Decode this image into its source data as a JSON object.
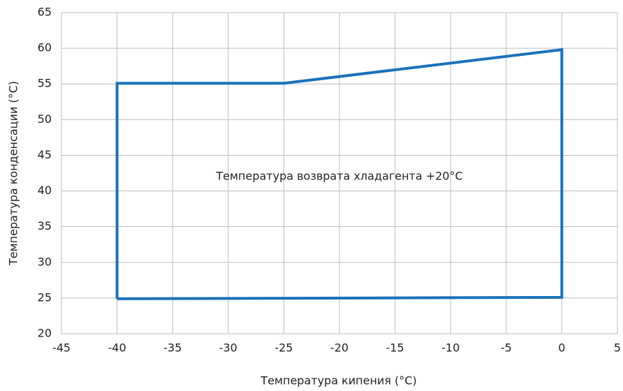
{
  "chart_data": {
    "type": "line",
    "xlabel": "Температура кипения (°C)",
    "ylabel": "Температура конденсации (°C)",
    "annotation": {
      "text": "Температура возврата хладагента +20°C",
      "x": -20,
      "y": 42
    },
    "x": [
      -40,
      -40,
      -25,
      0,
      0,
      -40
    ],
    "series": [
      {
        "name": "Температура возврата хладагента +20°C",
        "color": "#1a72b9",
        "values": [
          24.9,
          55.1,
          55.1,
          59.8,
          25.1,
          24.9
        ]
      }
    ],
    "xlim": [
      -45,
      5
    ],
    "xticks": [
      -45,
      -40,
      -35,
      -30,
      -25,
      -20,
      -15,
      -10,
      -5,
      0,
      5
    ],
    "ylim": [
      20,
      65
    ],
    "yticks": [
      20,
      25,
      30,
      35,
      40,
      45,
      50,
      55,
      60,
      65
    ],
    "grid": true
  }
}
